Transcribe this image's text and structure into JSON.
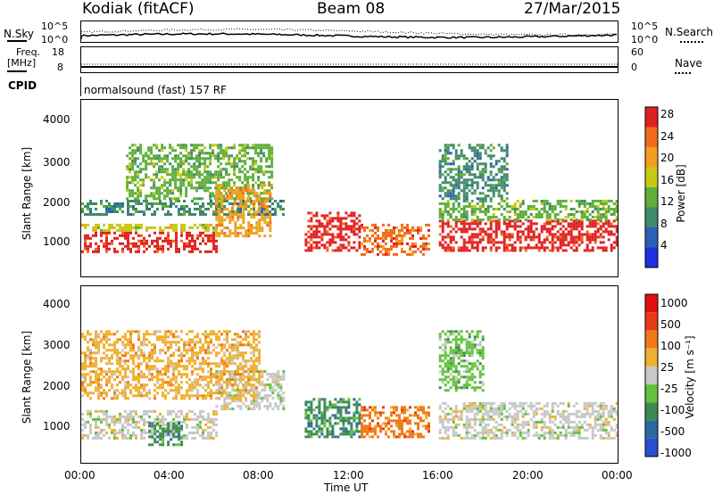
{
  "header": {
    "station": "Kodiak (fitACF)",
    "beam": "Beam 08",
    "date": "27/Mar/2015"
  },
  "top_panels": {
    "nsky_label": "N.Sky",
    "nsky_ticks": [
      "10^5",
      "10^0"
    ],
    "nsearch_label": "N.Search",
    "nsearch_ticks": [
      "10^5",
      "10^0"
    ],
    "freq_label": "Freq.",
    "freq_unit": "[MHz]",
    "freq_ticks": [
      "18",
      "8"
    ],
    "nave_label": "Nave",
    "nave_ticks": [
      "60",
      "0"
    ],
    "cpid_label": "CPID",
    "cpid_value": "normalsound (fast) 157 RF"
  },
  "chart_data": [
    {
      "type": "heatmap",
      "title": "",
      "xlabel": "Time UT",
      "ylabel": "Slant Range [km]",
      "x_ticks": [
        "00:00",
        "04:00",
        "08:00",
        "12:00",
        "16:00",
        "20:00",
        "00:00"
      ],
      "y_ticks": [
        "1000",
        "2000",
        "3000",
        "4000"
      ],
      "xlim_hours": [
        0,
        24
      ],
      "ylim_km": [
        180,
        4600
      ],
      "colorbar": {
        "label": "Power [dB]",
        "ticks": [
          "4",
          "8",
          "12",
          "16",
          "20",
          "24",
          "28"
        ],
        "colors": [
          "#1f2fe0",
          "#2e5fb8",
          "#3e8a6a",
          "#5fae3a",
          "#c8c814",
          "#f0a01e",
          "#f26a1a",
          "#e02020"
        ]
      },
      "regions": [
        {
          "t0": 0.0,
          "t1": 6.0,
          "r0": 800,
          "r1": 1300,
          "level": 7
        },
        {
          "t0": 0.0,
          "t1": 6.0,
          "r0": 1300,
          "r1": 1500,
          "level": 4
        },
        {
          "t0": 0.0,
          "t1": 9.0,
          "r0": 1700,
          "r1": 2100,
          "level": 2
        },
        {
          "t0": 2.0,
          "t1": 8.5,
          "r0": 2100,
          "r1": 3500,
          "level": 3
        },
        {
          "t0": 6.0,
          "t1": 8.5,
          "r0": 1200,
          "r1": 2500,
          "level": 5
        },
        {
          "t0": 10.0,
          "t1": 12.5,
          "r0": 800,
          "r1": 1800,
          "level": 7
        },
        {
          "t0": 12.5,
          "t1": 15.5,
          "r0": 700,
          "r1": 1500,
          "level": 6
        },
        {
          "t0": 16.0,
          "t1": 24.0,
          "r0": 800,
          "r1": 1600,
          "level": 7
        },
        {
          "t0": 16.0,
          "t1": 24.0,
          "r0": 1600,
          "r1": 2100,
          "level": 3
        },
        {
          "t0": 16.0,
          "t1": 19.0,
          "r0": 2100,
          "r1": 3500,
          "level": 2
        }
      ]
    },
    {
      "type": "heatmap",
      "title": "",
      "xlabel": "Time UT",
      "ylabel": "Slant Range [km]",
      "x_ticks": [
        "00:00",
        "04:00",
        "08:00",
        "12:00",
        "16:00",
        "20:00",
        "00:00"
      ],
      "y_ticks": [
        "1000",
        "2000",
        "3000",
        "4000"
      ],
      "xlim_hours": [
        0,
        24
      ],
      "ylim_km": [
        180,
        4600
      ],
      "colorbar": {
        "label": "Velocity [m s⁻¹]",
        "ticks": [
          "1000",
          "500",
          "100",
          "25",
          "-25",
          "-100",
          "-500",
          "-1000"
        ],
        "colors": [
          "#2a4fd0",
          "#2a6aa0",
          "#3e8a56",
          "#62c23a",
          "#c8c8c8",
          "#f0b030",
          "#f07a18",
          "#e83a18",
          "#e01010"
        ]
      },
      "regions": [
        {
          "t0": 0.0,
          "t1": 6.0,
          "r0": 800,
          "r1": 1500,
          "level": 4
        },
        {
          "t0": 6.0,
          "t1": 9.0,
          "r0": 1500,
          "r1": 2500,
          "level": 4
        },
        {
          "t0": 3.0,
          "t1": 4.5,
          "r0": 600,
          "r1": 1200,
          "level": 2
        },
        {
          "t0": 10.0,
          "t1": 12.5,
          "r0": 800,
          "r1": 1800,
          "level": 2
        },
        {
          "t0": 12.5,
          "t1": 15.5,
          "r0": 800,
          "r1": 1600,
          "level": 6
        },
        {
          "t0": 16.0,
          "t1": 24.0,
          "r0": 800,
          "r1": 1700,
          "level": 4
        },
        {
          "t0": 16.0,
          "t1": 18.0,
          "r0": 2000,
          "r1": 3500,
          "level": 3
        },
        {
          "t0": 0.0,
          "t1": 8.0,
          "r0": 1800,
          "r1": 3500,
          "level": 5
        }
      ]
    }
  ]
}
